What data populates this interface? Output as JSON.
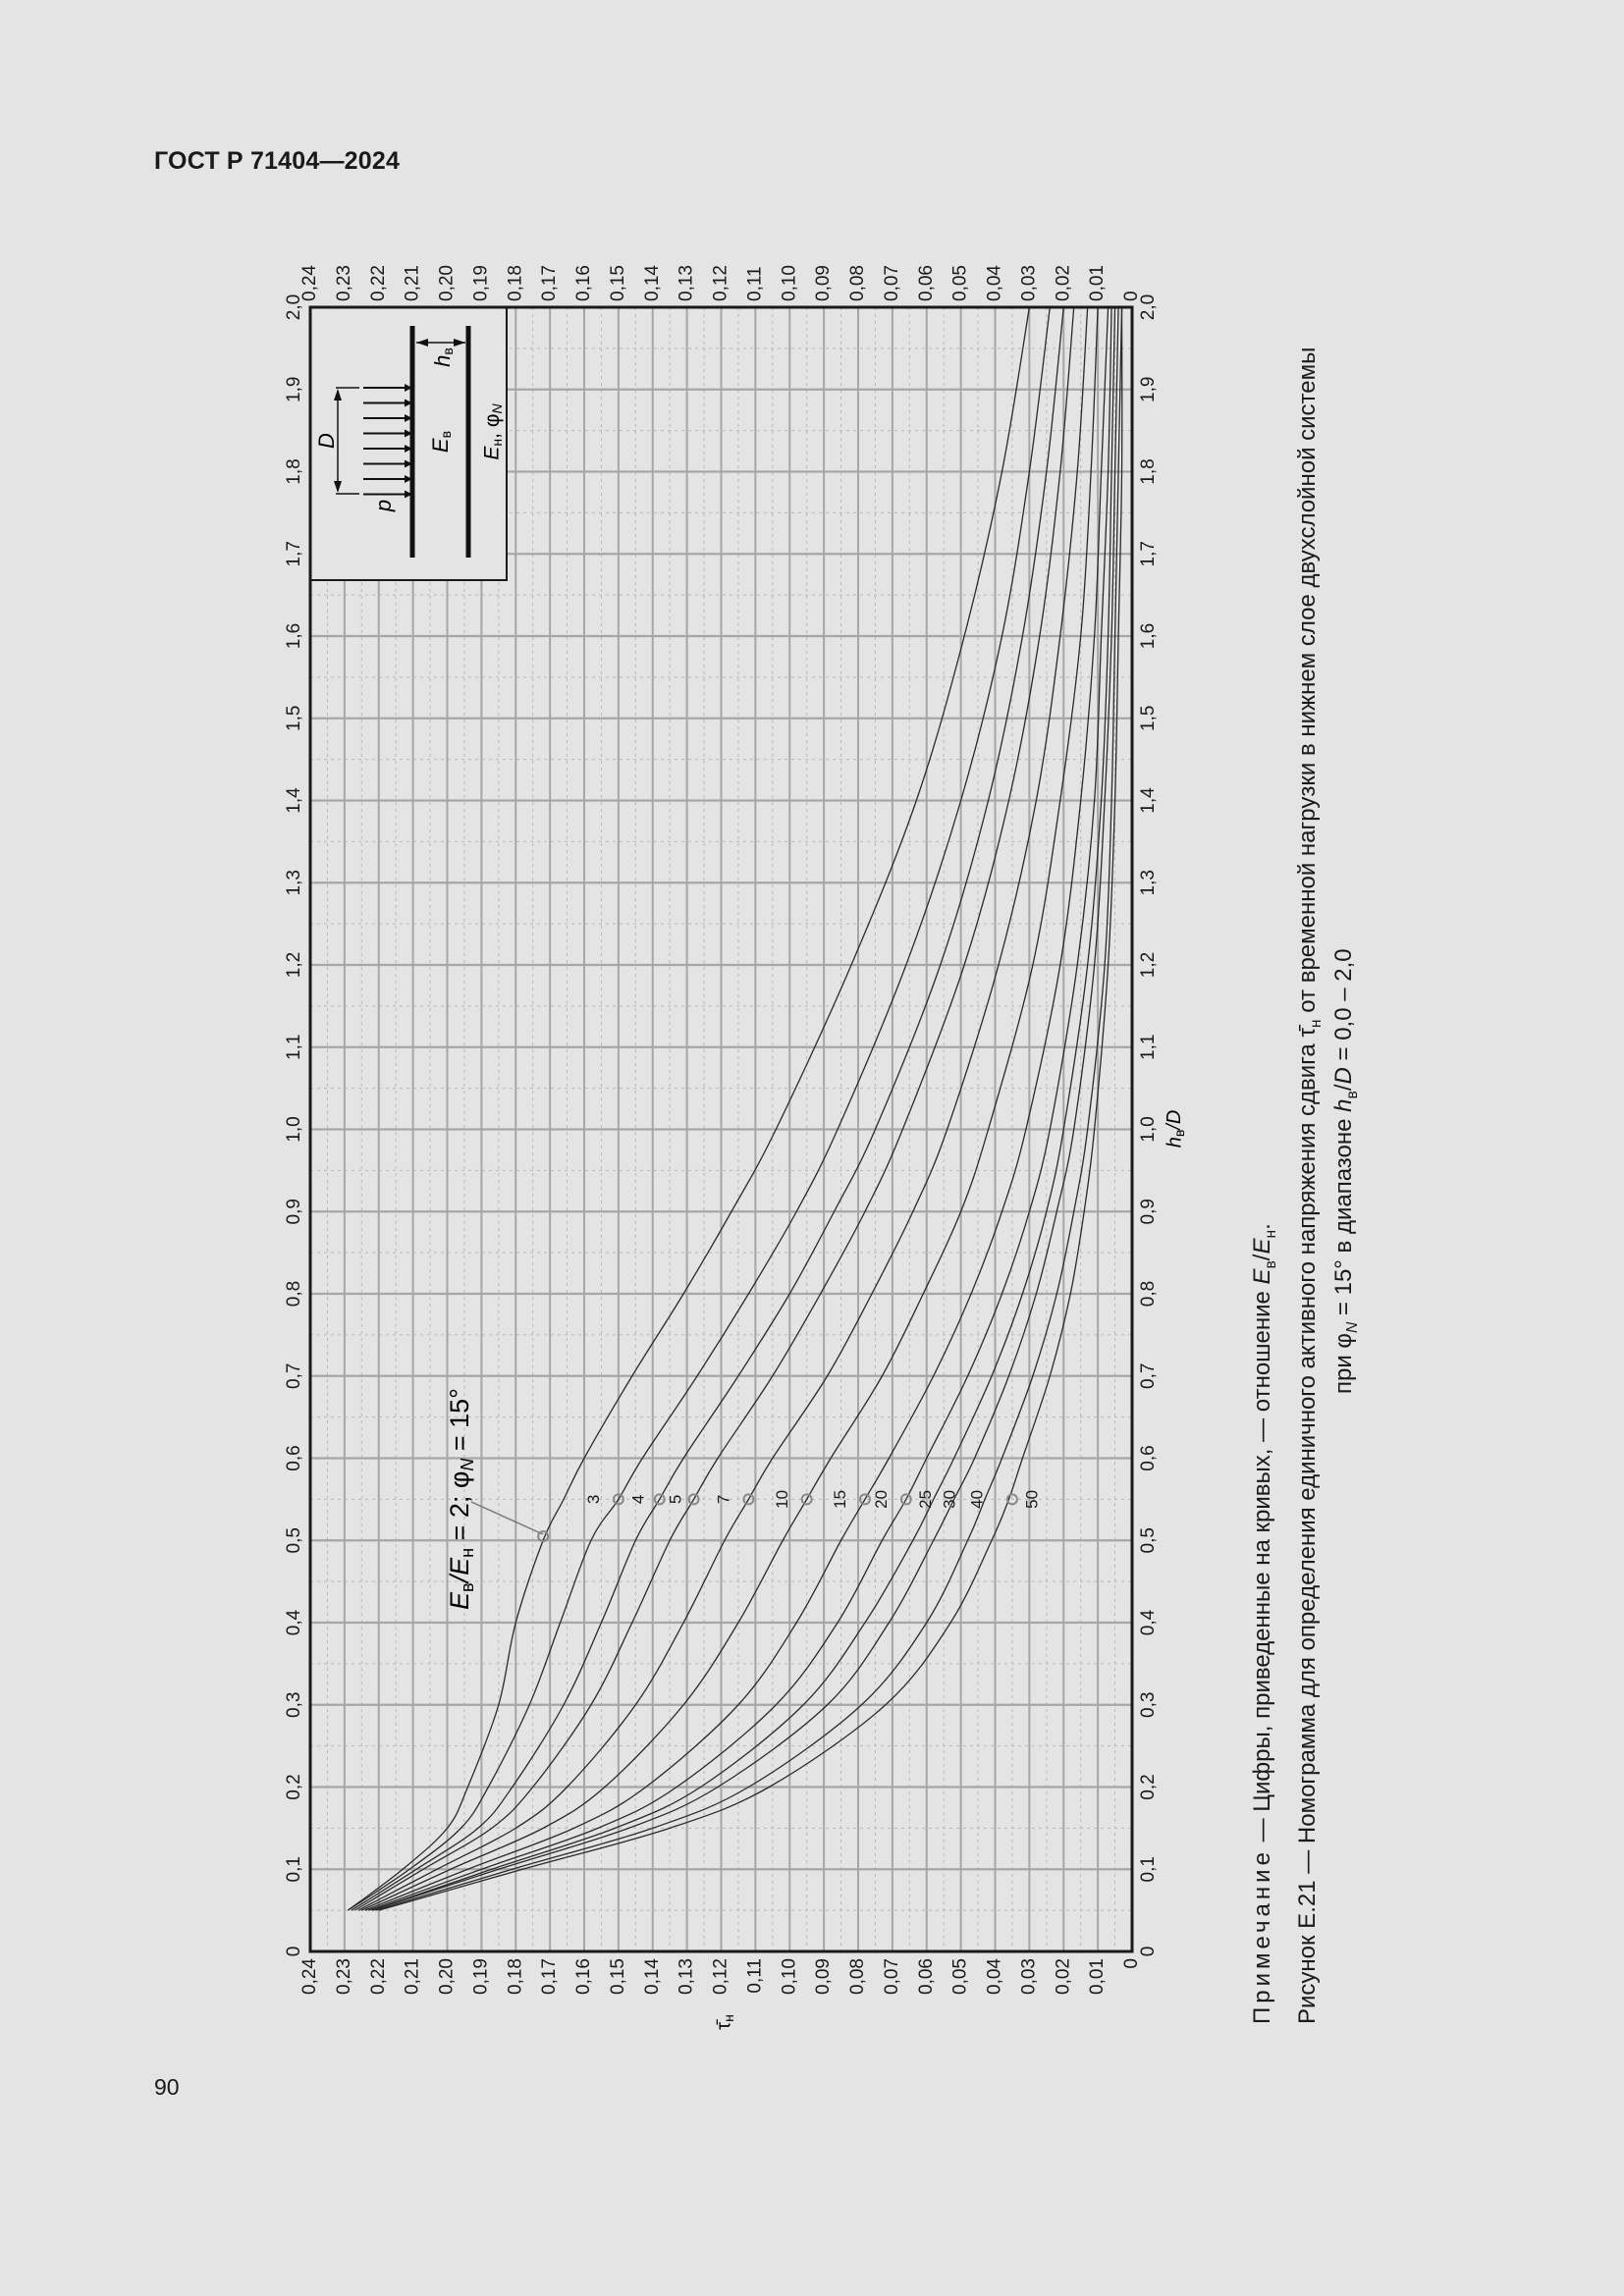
{
  "header": {
    "doc_id": "ГОСТ Р 71404—2024"
  },
  "page": {
    "number": "90"
  },
  "caption": {
    "note_prefix": "Примечание",
    "note_text": " — Цифры, приведенные на кривых, — отношение ",
    "note_ratio": "E",
    "figure_line1_a": "Рисунок Е.21 — Номограмма для определения единичного активного напряжения сдвига ",
    "figure_line1_b": " от временной нагрузки в нижнем слое двухслойной системы",
    "figure_line2_a": "при φ",
    "figure_line2_b": " = 15° в диапазоне ",
    "figure_line2_c": " = 0,0 – 2,0"
  },
  "inset": {
    "label_p": "p",
    "label_D": "D",
    "label_Ev": "E",
    "label_hv": "h",
    "label_En": "E",
    "label_phi": "φ"
  },
  "annotation": {
    "main_label": "E",
    "main_eq": " = 2; φ",
    "main_angle": " = 15°"
  },
  "chart_data": {
    "type": "line",
    "title": "Номограмма для определения единичного активного напряжения сдвига τ̄н от временной нагрузки в нижнем слое двухслойной системы при φN = 15°",
    "xlabel": "τ̄н",
    "ylabel": "hв/D",
    "orientation": "rotated 90° counter-clockwise on page",
    "xlim": [
      0.24,
      0
    ],
    "ylim": [
      0,
      2.0
    ],
    "x_ticks": [
      "0,24",
      "0,23",
      "0,22",
      "0,21",
      "0,20",
      "0,19",
      "0,18",
      "0,17",
      "0,16",
      "0,15",
      "0,14",
      "0,13",
      "0,12",
      "0,11",
      "0,10",
      "0,09",
      "0,08",
      "0,07",
      "0,06",
      "0,05",
      "0,04",
      "0,03",
      "0,02",
      "0,01",
      "0"
    ],
    "y_ticks": [
      "0",
      "0,1",
      "0,2",
      "0,3",
      "0,4",
      "0,5",
      "0,6",
      "0,7",
      "0,8",
      "0,9",
      "1,0",
      "1,1",
      "1,2",
      "1,3",
      "1,4",
      "1,5",
      "1,6",
      "1,7",
      "1,8",
      "1,9",
      "2,0"
    ],
    "grid": true,
    "legend": "curve labels = Eв/Eн ratio",
    "h_over_D": [
      0.05,
      0.1,
      0.15,
      0.2,
      0.3,
      0.4,
      0.5,
      0.55,
      0.6,
      0.7,
      0.8,
      0.9,
      1.0,
      1.2,
      1.4,
      1.6,
      1.8,
      2.0
    ],
    "series": [
      {
        "name": "2",
        "values": [
          0.229,
          0.213,
          0.2,
          0.194,
          0.185,
          0.18,
          0.172,
          0.166,
          0.16,
          0.146,
          0.131,
          0.117,
          0.104,
          0.082,
          0.063,
          0.049,
          0.038,
          0.03
        ]
      },
      {
        "name": "3",
        "values": [
          0.229,
          0.211,
          0.196,
          0.188,
          0.176,
          0.167,
          0.158,
          0.15,
          0.143,
          0.127,
          0.112,
          0.098,
          0.086,
          0.066,
          0.05,
          0.038,
          0.03,
          0.024
        ]
      },
      {
        "name": "4",
        "values": [
          0.228,
          0.209,
          0.191,
          0.181,
          0.166,
          0.155,
          0.145,
          0.138,
          0.131,
          0.115,
          0.1,
          0.087,
          0.075,
          0.056,
          0.042,
          0.032,
          0.025,
          0.02
        ]
      },
      {
        "name": "5",
        "values": [
          0.227,
          0.207,
          0.187,
          0.175,
          0.158,
          0.146,
          0.135,
          0.128,
          0.121,
          0.105,
          0.091,
          0.078,
          0.067,
          0.049,
          0.036,
          0.027,
          0.021,
          0.017
        ]
      },
      {
        "name": "7",
        "values": [
          0.226,
          0.203,
          0.18,
          0.165,
          0.145,
          0.131,
          0.119,
          0.112,
          0.105,
          0.089,
          0.076,
          0.064,
          0.054,
          0.039,
          0.028,
          0.021,
          0.016,
          0.013
        ]
      },
      {
        "name": "10",
        "values": [
          0.225,
          0.199,
          0.172,
          0.154,
          0.131,
          0.115,
          0.102,
          0.095,
          0.088,
          0.073,
          0.061,
          0.05,
          0.042,
          0.029,
          0.021,
          0.015,
          0.012,
          0.01
        ]
      },
      {
        "name": "15",
        "values": [
          0.224,
          0.194,
          0.163,
          0.142,
          0.115,
          0.098,
          0.085,
          0.078,
          0.071,
          0.058,
          0.047,
          0.038,
          0.031,
          0.021,
          0.015,
          0.011,
          0.009,
          0.007
        ]
      },
      {
        "name": "20",
        "values": [
          0.223,
          0.19,
          0.156,
          0.133,
          0.104,
          0.086,
          0.073,
          0.066,
          0.06,
          0.048,
          0.038,
          0.03,
          0.024,
          0.016,
          0.011,
          0.009,
          0.007,
          0.006
        ]
      },
      {
        "name": "25",
        "values": [
          0.222,
          0.187,
          0.151,
          0.126,
          0.096,
          0.078,
          0.064,
          0.058,
          0.052,
          0.041,
          0.032,
          0.025,
          0.02,
          0.013,
          0.009,
          0.007,
          0.006,
          0.005
        ]
      },
      {
        "name": "30",
        "values": [
          0.222,
          0.185,
          0.147,
          0.121,
          0.089,
          0.071,
          0.058,
          0.052,
          0.046,
          0.036,
          0.028,
          0.022,
          0.017,
          0.011,
          0.008,
          0.006,
          0.005,
          0.004
        ]
      },
      {
        "name": "40",
        "values": [
          0.221,
          0.181,
          0.14,
          0.112,
          0.079,
          0.06,
          0.048,
          0.043,
          0.038,
          0.029,
          0.022,
          0.017,
          0.013,
          0.008,
          0.006,
          0.005,
          0.004,
          0.003
        ]
      },
      {
        "name": "50",
        "values": [
          0.22,
          0.178,
          0.135,
          0.106,
          0.072,
          0.053,
          0.041,
          0.036,
          0.032,
          0.024,
          0.018,
          0.014,
          0.011,
          0.007,
          0.005,
          0.004,
          0.003,
          0.003
        ]
      }
    ],
    "label_points": [
      {
        "name": "2",
        "h_over_D": 0.505,
        "tau": 0.172
      },
      {
        "name": "3",
        "h_over_D": 0.55,
        "tau": 0.15
      },
      {
        "name": "4",
        "h_over_D": 0.55,
        "tau": 0.138
      },
      {
        "name": "5",
        "h_over_D": 0.55,
        "tau": 0.128
      },
      {
        "name": "7",
        "h_over_D": 0.55,
        "tau": 0.112
      },
      {
        "name": "10",
        "h_over_D": 0.55,
        "tau": 0.095
      },
      {
        "name": "15",
        "h_over_D": 0.55,
        "tau": 0.078
      },
      {
        "name": "20",
        "h_over_D": 0.55,
        "tau": 0.066
      },
      {
        "name": "40",
        "h_over_D": 0.55,
        "tau": 0.035
      }
    ],
    "annotations": [
      "Eв/Eн = 2; φN = 15°"
    ]
  },
  "colors": {
    "background": "#e4e4e4",
    "grid_major": "#a6a6a6",
    "grid_minor": "#b8b8b8",
    "curve": "#2a2a2a",
    "axis": "#1a1a1a",
    "marker": "#888888"
  }
}
